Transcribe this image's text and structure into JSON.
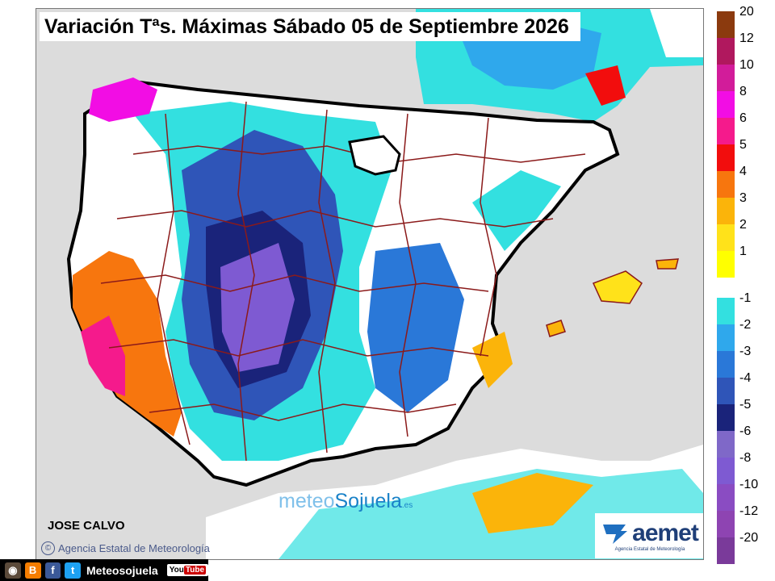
{
  "title": "Variación Tªs. Máximas Sábado 05 de Septiembre 2026",
  "author": "JOSE CALVO",
  "copyright": "Agencia Estatal de Meteorología",
  "watermark": {
    "part1": "meteo",
    "part2": "Sojuela",
    "part3": ".es"
  },
  "aemet_logo": {
    "word": "aemet",
    "subtitle": "Agencia Estatal de Meteorología"
  },
  "legend": {
    "positive": [
      {
        "label": "20",
        "color": "#8b3a0e"
      },
      {
        "label": "12",
        "color": "#b0185e"
      },
      {
        "label": "10",
        "color": "#d21c9a"
      },
      {
        "label": "8",
        "color": "#f20de4"
      },
      {
        "label": "6",
        "color": "#f51a8c"
      },
      {
        "label": "5",
        "color": "#f20d0d"
      },
      {
        "label": "4",
        "color": "#f7760e"
      },
      {
        "label": "3",
        "color": "#fbb40a"
      },
      {
        "label": "2",
        "color": "#ffe21a"
      },
      {
        "label": "1",
        "color": "#ffff00"
      }
    ],
    "negative": [
      {
        "label": "-1",
        "color": "#33e0e0"
      },
      {
        "label": "-2",
        "color": "#2fa8ec"
      },
      {
        "label": "-3",
        "color": "#2a78d8"
      },
      {
        "label": "-4",
        "color": "#2f55b8"
      },
      {
        "label": "-5",
        "color": "#1a237a"
      },
      {
        "label": "-6",
        "color": "#7f68c8"
      },
      {
        "label": "-8",
        "color": "#7e5ad2"
      },
      {
        "label": "-10",
        "color": "#8a4cc2"
      },
      {
        "label": "-12",
        "color": "#8e44b2"
      },
      {
        "label": "-20",
        "color": "#7a3a9a"
      }
    ]
  },
  "footer": {
    "brand": "Meteosojuela",
    "youtube": "You",
    "youtube_tube": "Tube"
  },
  "colors": {
    "land_neutral": "#ffffff",
    "sea": "#dcdcdc",
    "border": "#000000",
    "provinces": "#8b1a1a"
  }
}
